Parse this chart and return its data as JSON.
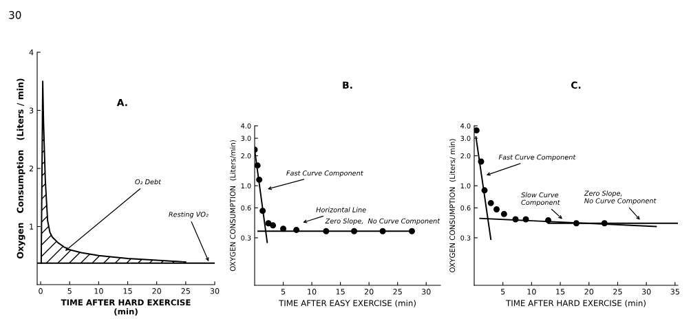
{
  "chart_data": [
    {
      "type": "area",
      "title": "A.",
      "xlabel": "TIME AFTER HARD EXERCISE\n(min)",
      "ylabel": "Oxygen   Consumption   (Liters / min)",
      "xlim": [
        -0.6,
        30
      ],
      "xticks": [
        0,
        5,
        10,
        15,
        20,
        25,
        30
      ],
      "ylim": [
        0,
        4
      ],
      "yticks": [
        1,
        2,
        3,
        4
      ],
      "series": [
        {
          "color": "#000000",
          "x": [
            0.1,
            0.36,
            0.5,
            0.8,
            1.2,
            1.6,
            2,
            3,
            4,
            5,
            7,
            10,
            15,
            20,
            25
          ],
          "values": [
            0.37,
            3.5,
            2.8,
            1.8,
            1.1,
            0.9,
            0.82,
            0.72,
            0.65,
            0.6,
            0.55,
            0.5,
            0.45,
            0.42,
            0.39
          ]
        }
      ],
      "ref_lines": [
        {
          "axis": "y",
          "value": 0.37,
          "label": "Resting V̇O₂",
          "color": "#000000",
          "line_style": "solid"
        }
      ],
      "annotations": [
        "30",
        "O₂ Debt"
      ],
      "grid": false,
      "legend": false,
      "line_style": "solid"
    },
    {
      "type": "scatter",
      "title": "B.",
      "xlabel": "TIME AFTER EASY EXERCISE (min)",
      "ylabel": "OXYGEN CONSUMPTION  (Liters/min)",
      "log": "y",
      "xlim": [
        0,
        32.5
      ],
      "xticks": [
        5,
        10,
        15,
        20,
        25,
        30
      ],
      "ylim": [
        0.1,
        4.0
      ],
      "yticks": [
        {
          "value": 0.3,
          "label": "0.3"
        },
        {
          "value": 0.6,
          "label": "0.6"
        },
        {
          "value": 1.0,
          "label": "1.0"
        },
        {
          "value": 2.0,
          "label": "2.0"
        },
        {
          "value": 3.0,
          "label": "3.0"
        },
        {
          "value": 4.0,
          "label": "4.0"
        }
      ],
      "series": [
        {
          "marker": "circle",
          "color": "#000000",
          "x": [
            0,
            0.5,
            0.8,
            1.4,
            2.4,
            3.2,
            5,
            7.3,
            12.5,
            17.4,
            22.4,
            27.5
          ],
          "values": [
            2.3,
            1.6,
            1.15,
            0.56,
            0.42,
            0.4,
            0.37,
            0.36,
            0.35,
            0.35,
            0.35,
            0.35
          ]
        },
        {
          "type": "line",
          "color": "#000000",
          "x": [
            0,
            2.2
          ],
          "values": [
            2.3,
            0.27
          ]
        },
        {
          "type": "line",
          "color": "#000000",
          "x": [
            0.6,
            27.5
          ],
          "values": [
            0.35,
            0.35
          ]
        }
      ],
      "annotations": [
        "Fast Curve Component",
        "Horizontal Line",
        "Zero Slope,  No Curve Component"
      ],
      "grid": false,
      "legend": false,
      "line_style": "solid"
    },
    {
      "type": "scatter",
      "title": "C.",
      "xlabel": "TIME AFTER HARD EXERCISE (min)",
      "ylabel": "OXYGEN CONSUMPTION  (Liters/ min)",
      "log": "y",
      "xlim": [
        0,
        35.5
      ],
      "xticks": [
        5,
        10,
        15,
        20,
        25,
        30,
        35
      ],
      "ylim": [
        0.1,
        4.0
      ],
      "yticks": [
        {
          "value": 0.3,
          "label": "0.3"
        },
        {
          "value": 0.6,
          "label": "0.6"
        },
        {
          "value": 1.0,
          "label": "1.0"
        },
        {
          "value": 2.0,
          "label": "2.0"
        },
        {
          "value": 3.0,
          "label": "3.0"
        },
        {
          "value": 4.0,
          "label": "4.0"
        }
      ],
      "series": [
        {
          "marker": "circle",
          "color": "#000000",
          "x": [
            0.4,
            1.2,
            1.8,
            2.9,
            3.9,
            5.2,
            7.2,
            9.0,
            12.9,
            17.8,
            22.7
          ],
          "values": [
            3.6,
            1.75,
            0.9,
            0.67,
            0.58,
            0.52,
            0.46,
            0.46,
            0.45,
            0.42,
            0.42
          ]
        },
        {
          "type": "line",
          "color": "#000000",
          "x": [
            0.3,
            2.9
          ],
          "values": [
            3.1,
            0.29
          ]
        },
        {
          "type": "line",
          "color": "#000000",
          "x": [
            1.0,
            31.7
          ],
          "values": [
            0.47,
            0.39
          ]
        },
        {
          "type": "line",
          "color": "#000000",
          "x": [
            12.9,
            35.4
          ],
          "values": [
            0.42,
            0.42
          ]
        }
      ],
      "annotations": [
        {
          "text": "Fast Curve Component",
          "x": 1.8,
          "y": 1.26
        },
        {
          "text": "Slow Curve\nComponent",
          "x": 15.6,
          "y": 0.45
        },
        {
          "text": "Zero Slope,\nNo Curve Component",
          "x": 29.1,
          "y": 0.44
        }
      ],
      "grid": false,
      "legend": false,
      "line_style": "solid"
    }
  ]
}
